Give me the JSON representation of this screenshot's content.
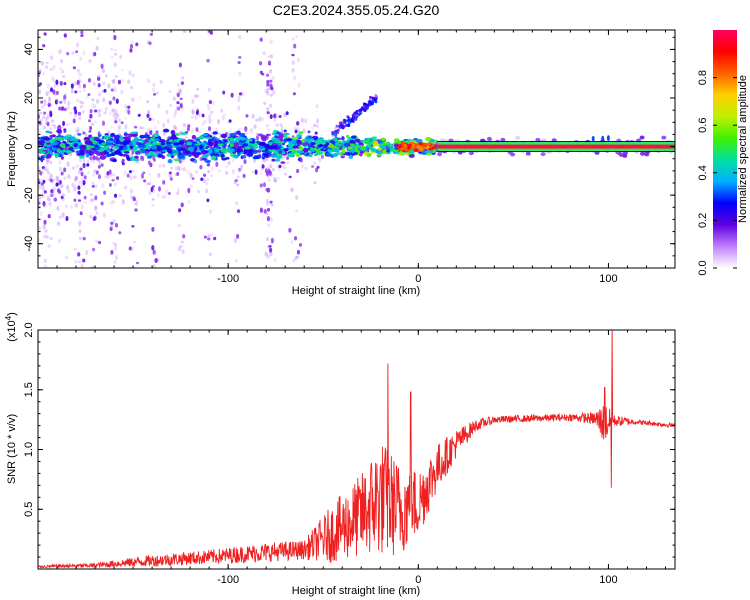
{
  "title": "C2E3.2024.355.05.24.G20",
  "chart_data": [
    {
      "type": "heatmap",
      "xlabel": "Height of straight line (km)",
      "ylabel": "Frequency (Hz)",
      "xlim": [
        -200,
        135
      ],
      "ylim": [
        -50,
        48
      ],
      "x_ticks": [
        -100,
        0,
        100
      ],
      "y_ticks": [
        -40,
        -20,
        0,
        20,
        40
      ],
      "colorbar": {
        "label": "Normalized spectral amplitude",
        "range": [
          0,
          1
        ],
        "ticks": [
          "0.0",
          "0.2",
          "0.4",
          "0.6",
          "0.8"
        ],
        "colors": [
          "#ffffff",
          "#c080ff",
          "#6000e0",
          "#0000ff",
          "#00b0ff",
          "#00e0a0",
          "#40f000",
          "#c0f000",
          "#ffd000",
          "#ff6000",
          "#ff0000",
          "#ff0060"
        ]
      },
      "features": {
        "carrier_line": {
          "x_start": 10,
          "x_end": 135,
          "frequency": 0,
          "amplitude": 1.0
        },
        "chirp": {
          "x_start": -45,
          "x_end": -22,
          "freq_start": 5,
          "freq_end": 20
        }
      }
    },
    {
      "type": "line",
      "xlabel": "Height of straight line (km)",
      "ylabel": "SNR (10 * v/v)",
      "y_scale_label": "(x10",
      "y_scale_exponent": "4",
      "xlim": [
        -200,
        135
      ],
      "ylim": [
        0,
        2.0
      ],
      "x_ticks": [
        -100,
        0,
        100
      ],
      "y_ticks": [
        "0.5",
        "1.0",
        "1.5",
        "2.0"
      ],
      "series_color": "#ee2020",
      "envelope": [
        {
          "x": -200,
          "base": 0.02,
          "noise": 0.01
        },
        {
          "x": -170,
          "base": 0.03,
          "noise": 0.02
        },
        {
          "x": -140,
          "base": 0.07,
          "noise": 0.05
        },
        {
          "x": -110,
          "base": 0.1,
          "noise": 0.06
        },
        {
          "x": -80,
          "base": 0.14,
          "noise": 0.08
        },
        {
          "x": -60,
          "base": 0.16,
          "noise": 0.08
        },
        {
          "x": -45,
          "base": 0.3,
          "noise": 0.25
        },
        {
          "x": -30,
          "base": 0.45,
          "noise": 0.35
        },
        {
          "x": -20,
          "base": 0.6,
          "noise": 0.5
        },
        {
          "x": -10,
          "base": 0.5,
          "noise": 0.4
        },
        {
          "x": 0,
          "base": 0.55,
          "noise": 0.3
        },
        {
          "x": 10,
          "base": 0.85,
          "noise": 0.2
        },
        {
          "x": 20,
          "base": 1.05,
          "noise": 0.12
        },
        {
          "x": 30,
          "base": 1.2,
          "noise": 0.05
        },
        {
          "x": 40,
          "base": 1.25,
          "noise": 0.03
        },
        {
          "x": 60,
          "base": 1.26,
          "noise": 0.03
        },
        {
          "x": 80,
          "base": 1.27,
          "noise": 0.03
        },
        {
          "x": 92,
          "base": 1.26,
          "noise": 0.05
        },
        {
          "x": 98,
          "base": 1.22,
          "noise": 0.18
        },
        {
          "x": 103,
          "base": 1.24,
          "noise": 0.05
        },
        {
          "x": 115,
          "base": 1.23,
          "noise": 0.02
        },
        {
          "x": 135,
          "base": 1.2,
          "noise": 0.02
        }
      ],
      "peaks": [
        {
          "x": -16,
          "y": 1.72
        },
        {
          "x": -4,
          "y": 1.48
        },
        {
          "x": 102,
          "y": 2.05
        },
        {
          "x": 101.5,
          "y": 0.68
        },
        {
          "x": 98,
          "y": 1.52
        }
      ]
    }
  ]
}
